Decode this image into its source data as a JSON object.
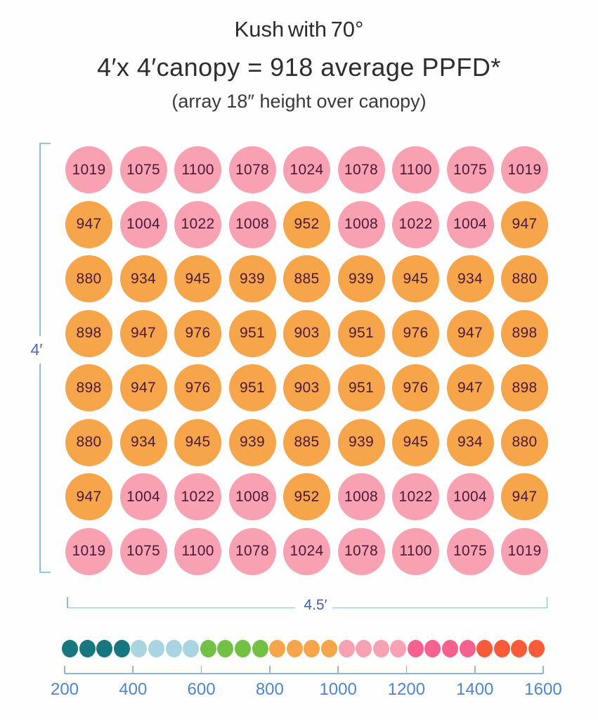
{
  "title": {
    "line1": "Kush with 70°",
    "line2": "4′x 4′canopy = 918 average PPFD*",
    "line3": "(array 18″ height over canopy)"
  },
  "dimensions": {
    "height_label": "4′",
    "width_label": "4.5′"
  },
  "chart_data": {
    "type": "heatmap",
    "title": "Kush with 70°",
    "subtitle": "4′x 4′canopy = 918 average PPFD*",
    "note": "(array 18″ height over canopy)",
    "average_ppfd": 918,
    "rows": 8,
    "cols": 9,
    "values": [
      [
        1019,
        1075,
        1100,
        1078,
        1024,
        1078,
        1100,
        1075,
        1019
      ],
      [
        947,
        1004,
        1022,
        1008,
        952,
        1008,
        1022,
        1004,
        947
      ],
      [
        880,
        934,
        945,
        939,
        885,
        939,
        945,
        934,
        880
      ],
      [
        898,
        947,
        976,
        951,
        903,
        951,
        976,
        947,
        898
      ],
      [
        898,
        947,
        976,
        951,
        903,
        951,
        976,
        947,
        898
      ],
      [
        880,
        934,
        945,
        939,
        885,
        939,
        945,
        934,
        880
      ],
      [
        947,
        1004,
        1022,
        1008,
        952,
        1008,
        1022,
        1004,
        947
      ],
      [
        1019,
        1075,
        1100,
        1078,
        1024,
        1078,
        1100,
        1075,
        1019
      ]
    ],
    "value_text_color": "#4A1A38",
    "x_extent_label": "4.5′",
    "y_extent_label": "4′",
    "color_scale": {
      "min": 200,
      "max": 1600,
      "tick_labels": [
        "200",
        "400",
        "600",
        "800",
        "1000",
        "1200",
        "1400",
        "1600"
      ],
      "dots_per_band": 4,
      "bands": [
        {
          "range": [
            200,
            400
          ],
          "color": "#16777E"
        },
        {
          "range": [
            400,
            600
          ],
          "color": "#A9D5E2"
        },
        {
          "range": [
            600,
            800
          ],
          "color": "#72C145"
        },
        {
          "range": [
            800,
            1000
          ],
          "color": "#F6A54B"
        },
        {
          "range": [
            1000,
            1200
          ],
          "color": "#F8A1B3"
        },
        {
          "range": [
            1200,
            1400
          ],
          "color": "#F7618E"
        },
        {
          "range": [
            1400,
            1600
          ],
          "color": "#F95B38"
        }
      ]
    },
    "legend_position": "bottom",
    "grid": false
  },
  "colors": {
    "background": "#FEFEFE",
    "title_text": "#2D2D2D",
    "bracket_line": "#90BCDC",
    "height_label_text": "#5566AE",
    "width_label_text": "#4061AE",
    "axis_text": "#4C86CC"
  }
}
